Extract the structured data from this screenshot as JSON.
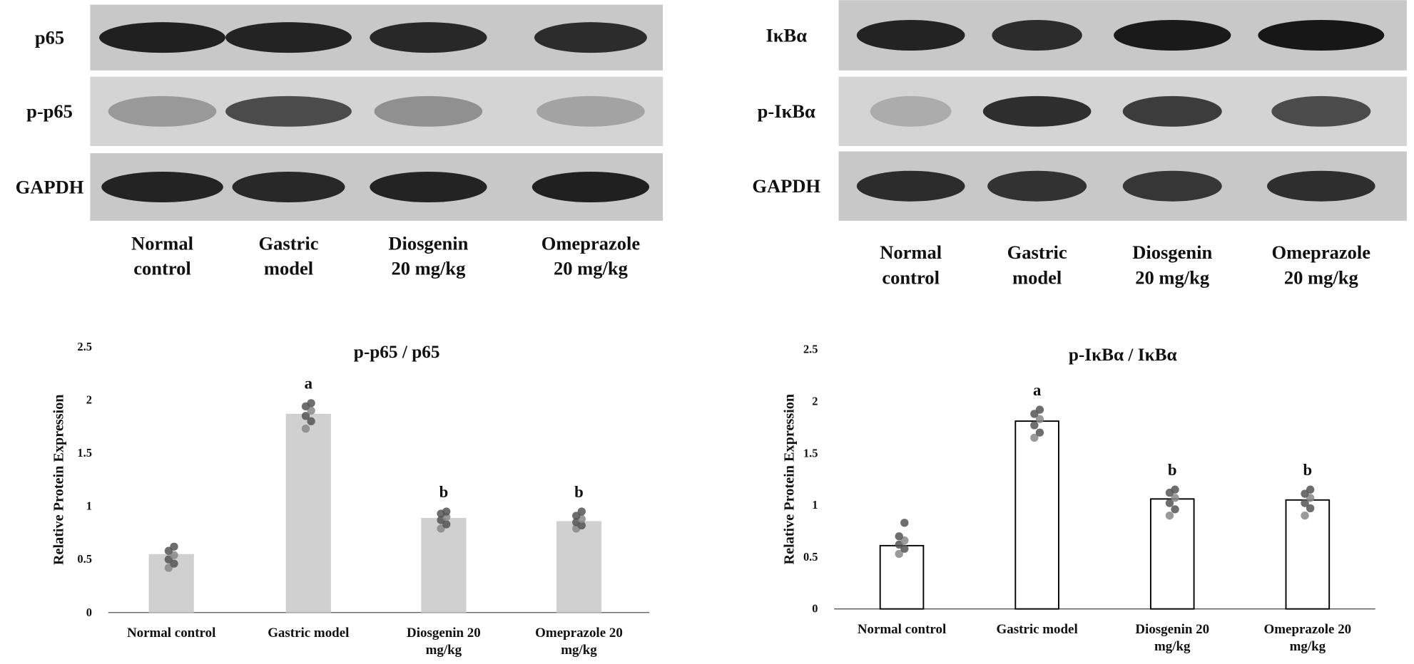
{
  "blots": [
    {
      "rows": [
        "p65",
        "p-p65",
        "GAPDH"
      ],
      "lanes": [
        "Normal\ncontrol",
        "Gastric\nmodel",
        "Diosgenin\n20 mg/kg",
        "Omeprazole\n20 mg/kg"
      ]
    },
    {
      "rows": [
        "IκBα",
        "p-IκBα",
        "GAPDH"
      ],
      "lanes": [
        "Normal\ncontrol",
        "Gastric\nmodel",
        "Diosgenin\n20 mg/kg",
        "Omeprazole\n20 mg/kg"
      ]
    }
  ],
  "chart_data": [
    {
      "type": "bar",
      "title": "p-p65 / p65",
      "ylabel": "Relative Protein Expression",
      "categories": [
        "Normal control",
        "Gastric model",
        "Diosgenin 20\nmg/kg",
        "Omeprazole 20\nmg/kg"
      ],
      "values": [
        0.55,
        1.87,
        0.89,
        0.86
      ],
      "color": "#d0d0d0",
      "edgecolor": null,
      "letters": [
        null,
        "a",
        "b",
        "b"
      ],
      "points": [
        [
          0.42,
          0.46,
          0.5,
          0.54,
          0.58,
          0.62
        ],
        [
          1.73,
          1.8,
          1.85,
          1.9,
          1.94,
          1.97
        ],
        [
          0.79,
          0.83,
          0.87,
          0.9,
          0.93,
          0.95
        ],
        [
          0.79,
          0.82,
          0.85,
          0.88,
          0.91,
          0.95
        ]
      ],
      "ylim": [
        0,
        2.5
      ],
      "yticks": [
        0,
        0.5,
        1,
        1.5,
        2,
        2.5
      ]
    },
    {
      "type": "bar",
      "title": "p-IκBα / IκBα",
      "ylabel": "Relative Protein Expression",
      "categories": [
        "Normal control",
        "Gastric model",
        "Diosgenin 20\nmg/kg",
        "Omeprazole 20\nmg/kg"
      ],
      "values": [
        0.61,
        1.81,
        1.06,
        1.05
      ],
      "color": "#ffffff",
      "edgecolor": "#000000",
      "letters": [
        null,
        "a",
        "b",
        "b"
      ],
      "points": [
        [
          0.53,
          0.58,
          0.62,
          0.66,
          0.7,
          0.83
        ],
        [
          1.65,
          1.7,
          1.77,
          1.83,
          1.88,
          1.92
        ],
        [
          0.9,
          0.96,
          1.02,
          1.07,
          1.12,
          1.15
        ],
        [
          0.9,
          0.97,
          1.02,
          1.07,
          1.11,
          1.15
        ]
      ],
      "ylim": [
        0,
        2.5
      ],
      "yticks": [
        0,
        0.5,
        1,
        1.5,
        2,
        2.5
      ]
    }
  ]
}
